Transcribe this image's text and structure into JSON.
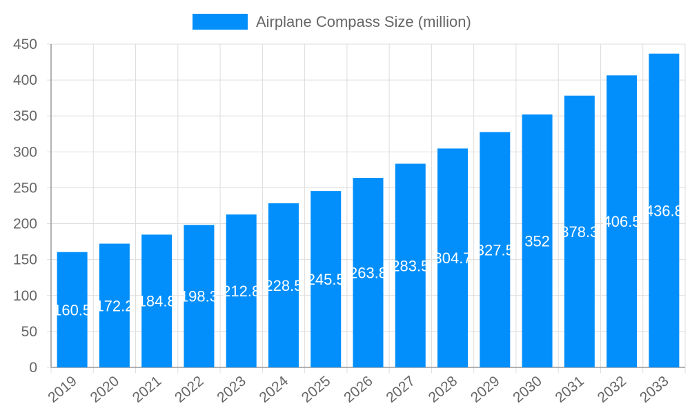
{
  "chart_data": {
    "type": "bar",
    "categories": [
      "2019",
      "2020",
      "2021",
      "2022",
      "2023",
      "2024",
      "2025",
      "2026",
      "2027",
      "2028",
      "2029",
      "2030",
      "2031",
      "2032",
      "2033"
    ],
    "series": [
      {
        "name": "Airplane Compass Size (million)",
        "values": [
          160.5,
          172.2,
          184.8,
          198.3,
          212.8,
          228.5,
          245.5,
          263.8,
          283.5,
          304.7,
          327.5,
          352,
          378.3,
          406.5,
          436.8
        ]
      }
    ],
    "ylim": [
      0,
      450
    ],
    "yticks": [
      0,
      50,
      100,
      150,
      200,
      250,
      300,
      350,
      400,
      450
    ],
    "grid": true,
    "legend": "top-center",
    "colors": {
      "bar": "#038ffb",
      "grid": "#dddddd",
      "axis": "#999999",
      "text": "#666666",
      "label": "#ffffff"
    }
  }
}
